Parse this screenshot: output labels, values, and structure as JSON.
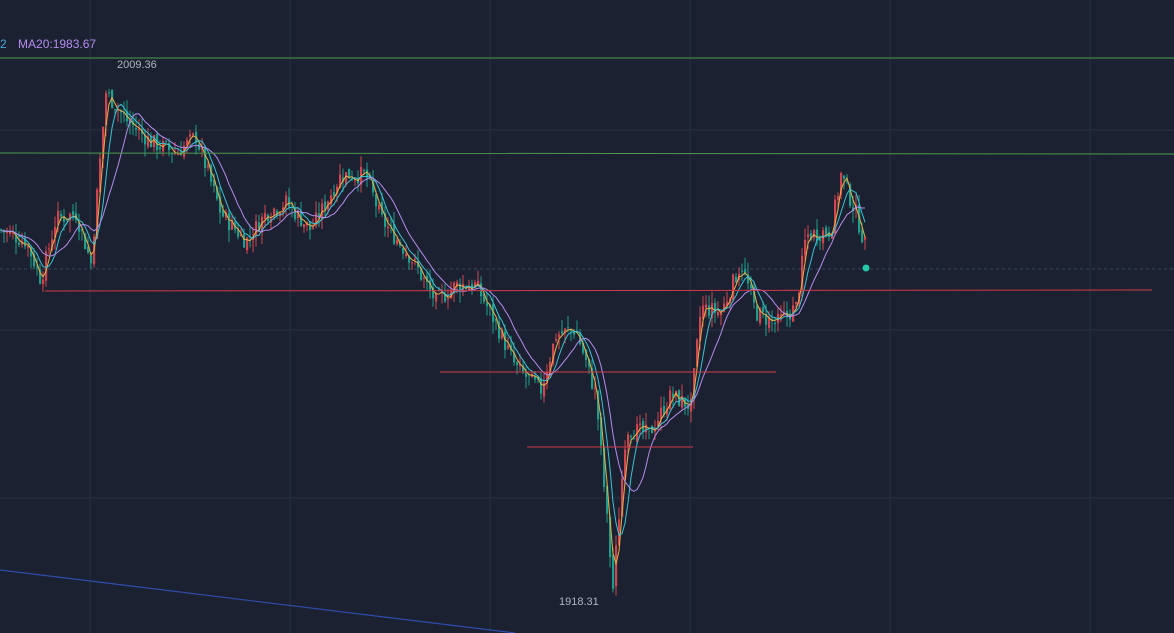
{
  "legend": {
    "fragment": "2",
    "ma20": "MA20:1983.67",
    "fragment_color": "#4aa8d8",
    "ma20_color": "#b58cf0"
  },
  "colors": {
    "background": "#1b2130",
    "grid": "#2a3344",
    "up": "#d0454f",
    "down": "#1e9e8c",
    "wick_neutral": "#7f858e",
    "ma5": "#e6b24a",
    "ma10": "#3bc3d6",
    "ma20": "#b58cf0",
    "horizontal_green": "#4c9a4c",
    "horizontal_red": "#d03a48",
    "trend_blue": "#2f4dab",
    "current_dot": "#26c6a8"
  },
  "chart_data": {
    "type": "candlestick",
    "title": "",
    "xlabel": "",
    "ylabel": "",
    "ylim": [
      1916.9,
      2015.2
    ],
    "annotations": {
      "high": {
        "value": 2009.36,
        "label": "2009.36"
      },
      "low": {
        "value": 1918.31,
        "label": "1918.31"
      }
    },
    "horizontal_levels": [
      {
        "value": 2015.2,
        "color": "green"
      },
      {
        "value": 1994.6,
        "color": "green"
      },
      {
        "value": 1975.7,
        "color": "red",
        "scope": "support"
      },
      {
        "value": 1950.7,
        "color": "red",
        "scope": "support"
      }
    ],
    "price_path": [
      [
        0,
        1984
      ],
      [
        25,
        1982
      ],
      [
        40,
        1975
      ],
      [
        55,
        1986
      ],
      [
        75,
        1987
      ],
      [
        90,
        1978
      ],
      [
        105,
        2009
      ],
      [
        125,
        2004
      ],
      [
        150,
        2000
      ],
      [
        175,
        1998
      ],
      [
        195,
        2001
      ],
      [
        220,
        1987
      ],
      [
        245,
        1982
      ],
      [
        265,
        1987
      ],
      [
        285,
        1989
      ],
      [
        310,
        1984
      ],
      [
        340,
        1994
      ],
      [
        365,
        1994
      ],
      [
        380,
        1986
      ],
      [
        410,
        1979
      ],
      [
        435,
        1971
      ],
      [
        455,
        1974
      ],
      [
        475,
        1974
      ],
      [
        495,
        1967
      ],
      [
        515,
        1959
      ],
      [
        540,
        1955
      ],
      [
        555,
        1965
      ],
      [
        575,
        1966
      ],
      [
        595,
        1954
      ],
      [
        612,
        1919
      ],
      [
        625,
        1948
      ],
      [
        648,
        1947
      ],
      [
        670,
        1954
      ],
      [
        690,
        1952
      ],
      [
        700,
        1970
      ],
      [
        720,
        1969
      ],
      [
        740,
        1978
      ],
      [
        755,
        1969
      ],
      [
        775,
        1967
      ],
      [
        795,
        1970
      ],
      [
        805,
        1983
      ],
      [
        830,
        1984
      ],
      [
        840,
        1994
      ],
      [
        855,
        1987
      ],
      [
        866,
        1980
      ]
    ],
    "series": [
      {
        "name": "MA20",
        "last": 1983.67
      }
    ]
  }
}
